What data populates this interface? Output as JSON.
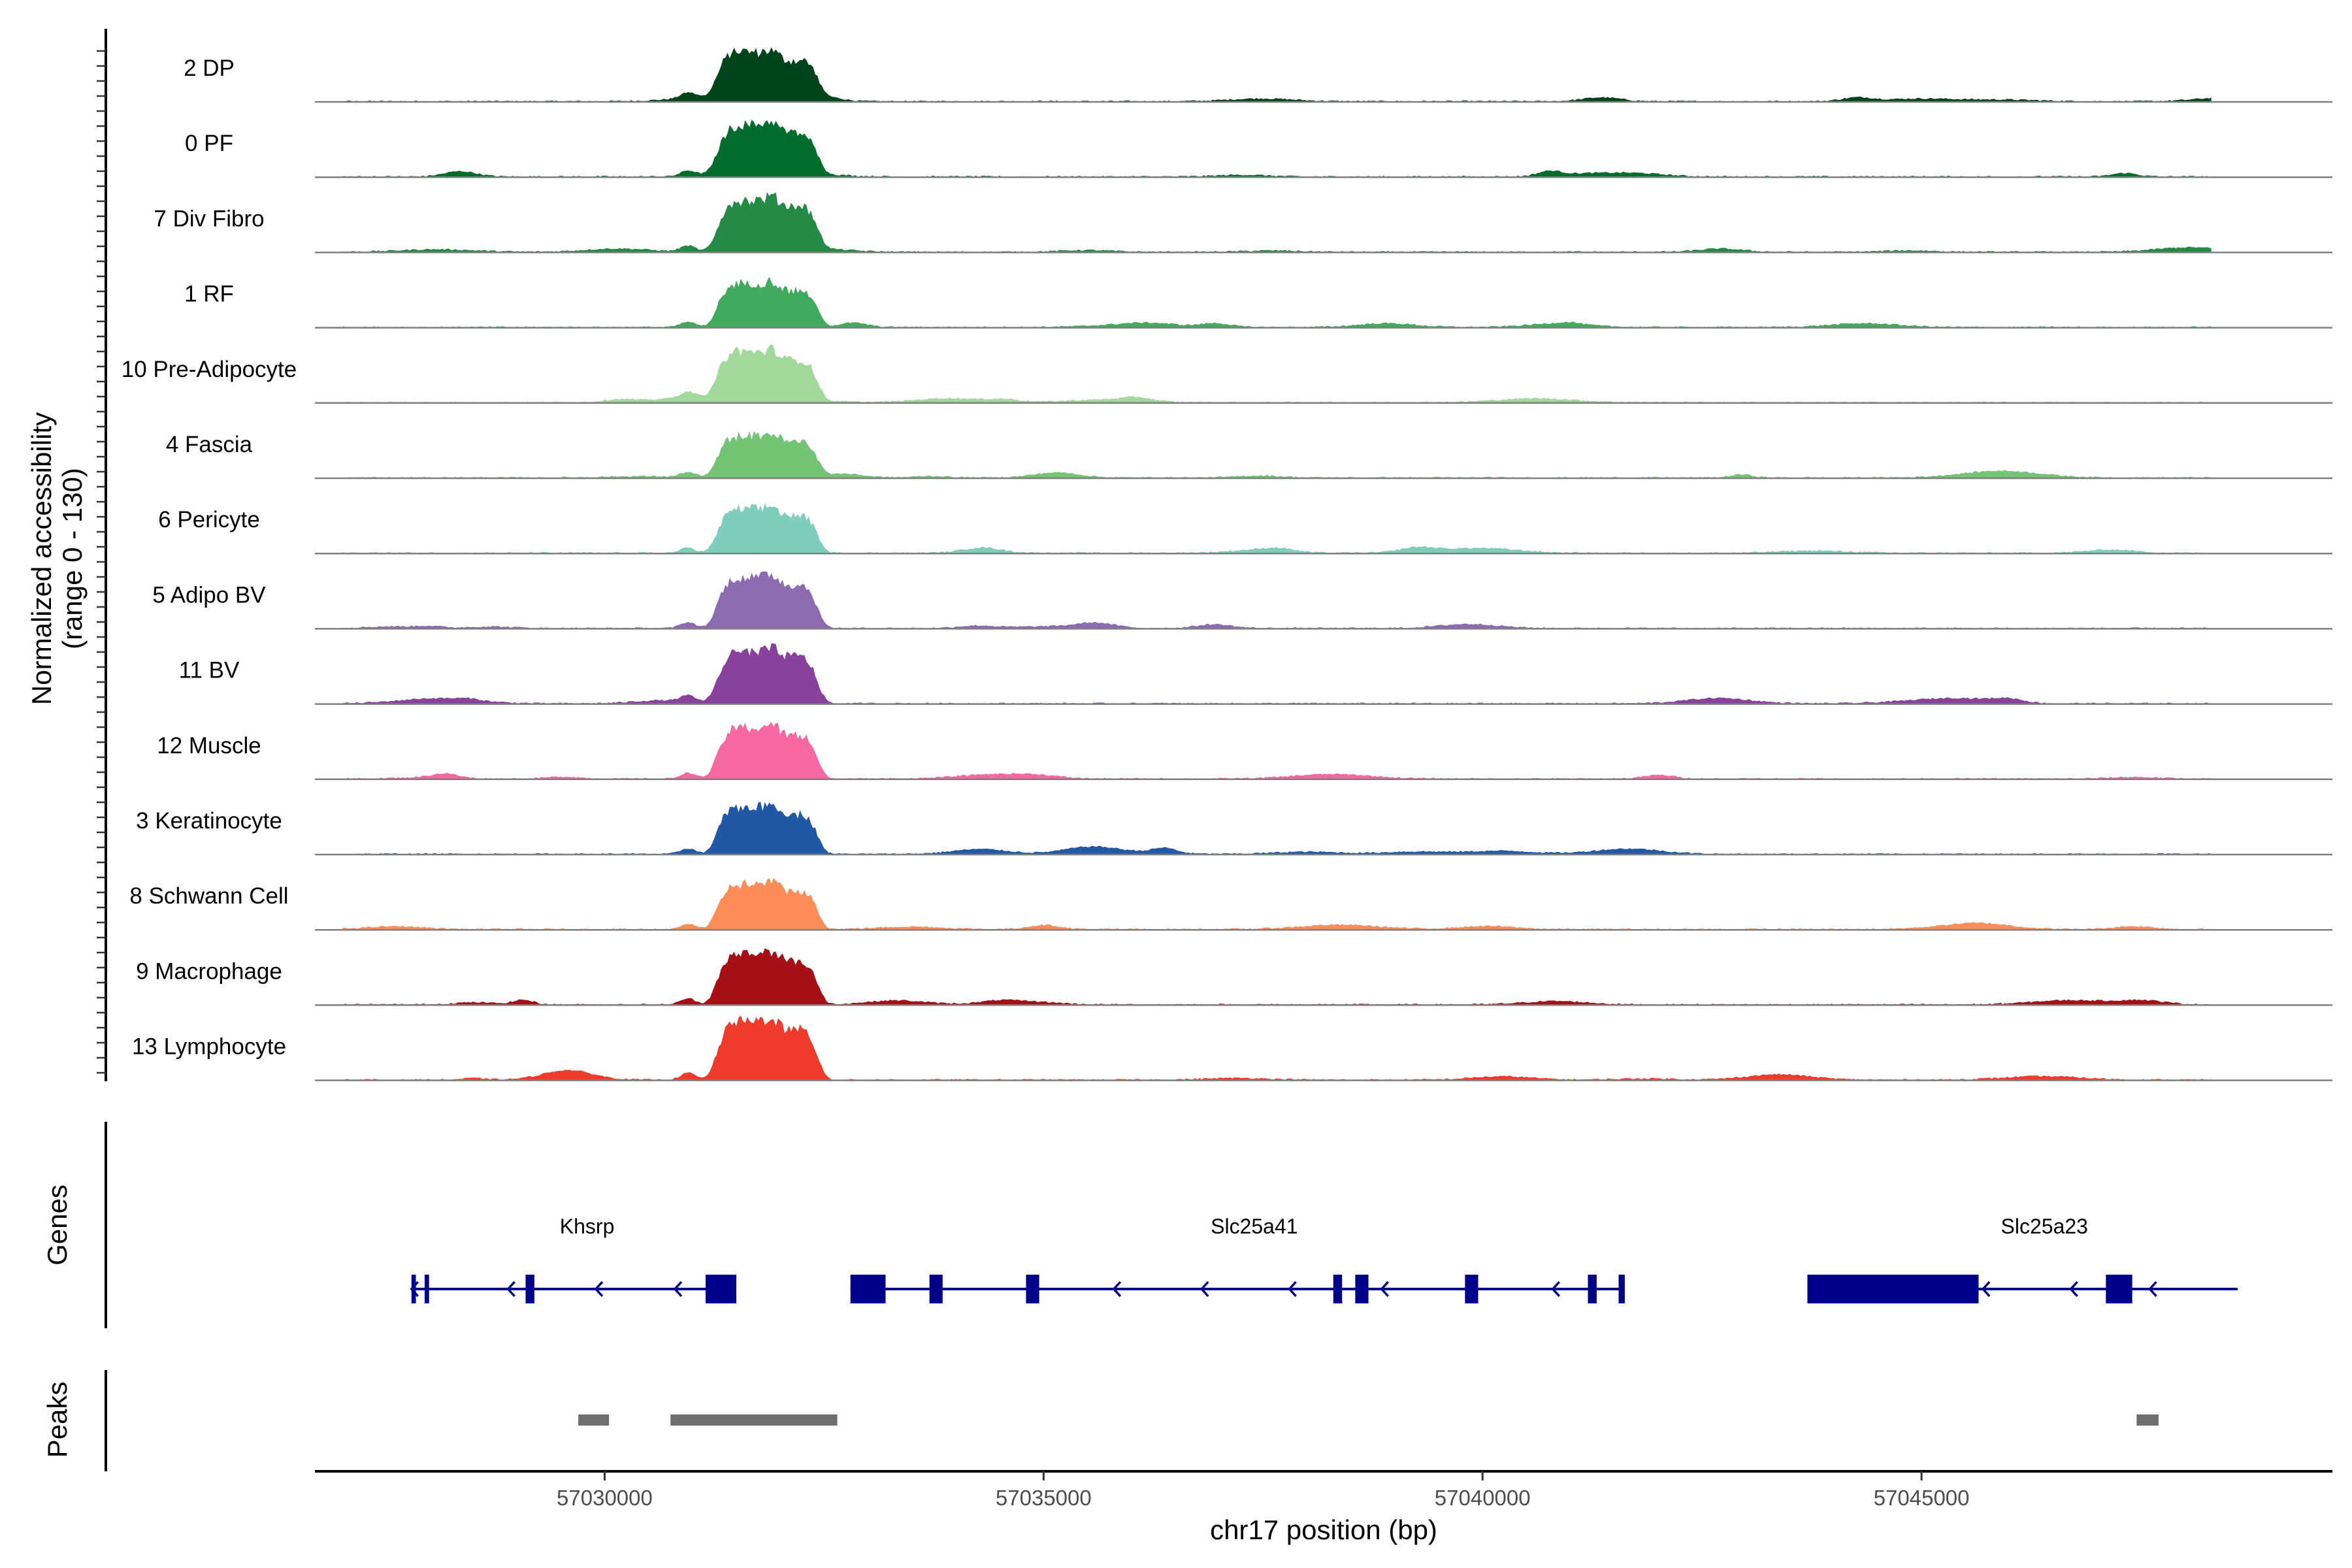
{
  "chart_data": {
    "type": "area",
    "title": "",
    "ylabel_line1": "Normalized accessibility",
    "ylabel_line2": "(range 0 - 130)",
    "y_range": [
      0,
      130
    ],
    "genes_label": "Genes",
    "peaks_label": "Peaks",
    "xlabel": "chr17 position (bp)",
    "x_range": [
      57027000,
      57050000
    ],
    "x_ticks": [
      57030000,
      57035000,
      57040000,
      57045000
    ],
    "x_tick_labels": [
      "57030000",
      "57035000",
      "57040000",
      "57045000"
    ],
    "tracks": [
      {
        "name": "2 DP",
        "color": "#00441b",
        "peak": 0.92
      },
      {
        "name": "0 PF",
        "color": "#006d2c",
        "peak": 0.88
      },
      {
        "name": "7 Div Fibro",
        "color": "#238b45",
        "peak": 1.0
      },
      {
        "name": "1 RF",
        "color": "#41ab5d",
        "peak": 0.85
      },
      {
        "name": "10 Pre-Adipocyte",
        "color": "#a1d99b",
        "peak": 0.95
      },
      {
        "name": "4 Fascia",
        "color": "#74c476",
        "peak": 0.82
      },
      {
        "name": "6 Pericyte",
        "color": "#7fcdbb",
        "peak": 0.86
      },
      {
        "name": "5 Adipo BV",
        "color": "#8c6bb1",
        "peak": 1.0
      },
      {
        "name": "11 BV",
        "color": "#88419d",
        "peak": 1.0
      },
      {
        "name": "12 Muscle",
        "color": "#f768a1",
        "peak": 1.0
      },
      {
        "name": "3 Keratinocyte",
        "color": "#2158a5",
        "peak": 0.92
      },
      {
        "name": "8 Schwann Cell",
        "color": "#fc8d59",
        "peak": 0.88
      },
      {
        "name": "9 Macrophage",
        "color": "#a50f15",
        "peak": 1.0
      },
      {
        "name": "13 Lymphocyte",
        "color": "#ef3b2c",
        "peak": 1.15
      }
    ],
    "genes": [
      {
        "name": "Khsrp",
        "start": 57027800,
        "end": 57031500,
        "strand": "-",
        "label_pos": 57029800,
        "exons": [
          [
            57027800,
            57027850
          ],
          [
            57027950,
            57028000
          ],
          [
            57029100,
            57029200
          ],
          [
            57031150,
            57031500
          ]
        ],
        "arrows": [
          57028900,
          57029900,
          57030800
        ]
      },
      {
        "name": "Slc25a41",
        "start": 57032800,
        "end": 57041600,
        "strand": "-",
        "label_pos": 57037400,
        "exons": [
          [
            57032800,
            57033200
          ],
          [
            57033700,
            57033850
          ],
          [
            57034800,
            57034950
          ],
          [
            57038300,
            57038400
          ],
          [
            57038550,
            57038700
          ],
          [
            57039800,
            57039950
          ],
          [
            57041200,
            57041300
          ],
          [
            57041550,
            57041620
          ]
        ],
        "arrows": [
          57035800,
          57036800,
          57037800,
          57038850,
          57040800
        ]
      },
      {
        "name": "Slc25a23",
        "start": 57043700,
        "end": 57048600,
        "strand": "-",
        "label_pos": 57046400,
        "exons": [
          [
            57043700,
            57045650
          ],
          [
            57047100,
            57047400
          ]
        ],
        "arrows": [
          57045700,
          57046700,
          57047600
        ]
      }
    ],
    "peaks": [
      [
        57029700,
        57030050
      ],
      [
        57030750,
        57032650
      ],
      [
        57047450,
        57047700
      ]
    ]
  }
}
